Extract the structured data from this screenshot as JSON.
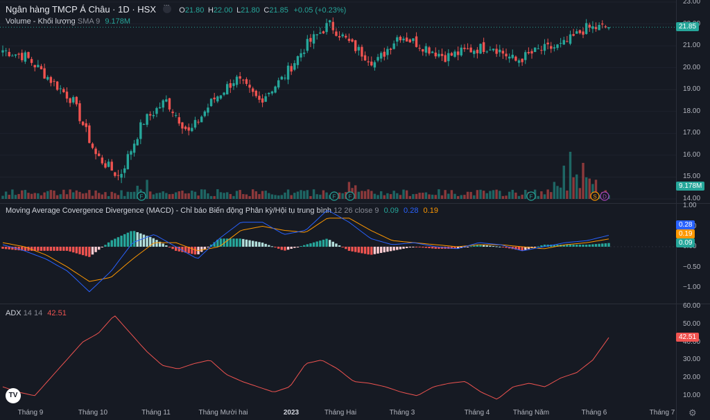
{
  "header": {
    "symbol": "Ngân hàng TMCP Á Châu · 1D · HSX",
    "open_label": "O",
    "open": "21.80",
    "high_label": "H",
    "high": "22.00",
    "low_label": "L",
    "low": "21.80",
    "close_label": "C",
    "close": "21.85",
    "change": "+0.05 (+0.23%)"
  },
  "volume_legend": {
    "name": "Volume - Khối lượng",
    "param": "SMA 9",
    "value": "9.178M"
  },
  "macd_legend": {
    "name": "Moving Average Covergence Divergence (MACD) - Chỉ báo Biến động Phân kỳ/Hội tụ trung bình",
    "param": "12 26 close 9",
    "hist": "0.09",
    "macd": "0.28",
    "signal": "0.19"
  },
  "adx_legend": {
    "name": "ADX",
    "param": "14 14",
    "value": "42.51"
  },
  "colors": {
    "up": "#26a69a",
    "down": "#ef5350",
    "macd": "#2962ff",
    "signal": "#ff9800",
    "adx": "#ef5350",
    "bg": "#161a23"
  },
  "price_axis": [
    "23.00",
    "22.00",
    "21.00",
    "20.00",
    "19.00",
    "18.00",
    "17.00",
    "16.00",
    "15.00",
    "14.00"
  ],
  "macd_axis": [
    "1.00",
    "0.50",
    "0.00",
    "−0.50",
    "−1.00"
  ],
  "adx_axis": [
    "60.00",
    "50.00",
    "40.00",
    "30.00",
    "20.00",
    "10.00"
  ],
  "tags": {
    "price": "21.85",
    "volume": "9.178M",
    "macd": "0.28",
    "signal": "0.19",
    "hist": "0.09",
    "adx": "42.51"
  },
  "x_labels": [
    "Tháng 9",
    "Tháng 10",
    "Tháng 11",
    "Tháng Mười hai",
    "2023",
    "Tháng Hai",
    "Tháng 3",
    "Tháng 4",
    "Tháng Năm",
    "Tháng 6",
    "Tháng 7"
  ],
  "event_markers": [
    "F",
    "F",
    "F",
    "F",
    "S",
    "D"
  ],
  "logo": "TV",
  "settings_icon": "gear-icon",
  "chart_data": [
    {
      "type": "candlestick",
      "title": "Ngân hàng TMCP Á Châu · 1D · HSX",
      "ylim": [
        14.0,
        23.0
      ],
      "close_key_points": [
        {
          "date": "Sep 2022",
          "close": 20.8
        },
        {
          "date": "mid Sep",
          "close": 20.5
        },
        {
          "date": "end Sep",
          "close": 19.5
        },
        {
          "date": "early Oct",
          "close": 18.5
        },
        {
          "date": "mid Oct",
          "close": 16.0
        },
        {
          "date": "late Oct",
          "close": 15.0
        },
        {
          "date": "early Nov",
          "close": 17.5
        },
        {
          "date": "mid Nov",
          "close": 18.5
        },
        {
          "date": "late Nov",
          "close": 17.0
        },
        {
          "date": "early Dec",
          "close": 18.5
        },
        {
          "date": "mid Dec",
          "close": 19.5
        },
        {
          "date": "end Dec",
          "close": 18.5
        },
        {
          "date": "early Jan 2023",
          "close": 19.5
        },
        {
          "date": "mid Jan",
          "close": 21.0
        },
        {
          "date": "late Jan",
          "close": 22.0
        },
        {
          "date": "early Feb",
          "close": 21.0
        },
        {
          "date": "mid Feb",
          "close": 20.2
        },
        {
          "date": "late Feb",
          "close": 21.5
        },
        {
          "date": "early Mar",
          "close": 21.0
        },
        {
          "date": "mid Mar",
          "close": 20.5
        },
        {
          "date": "early Apr",
          "close": 20.8
        },
        {
          "date": "mid Apr",
          "close": 21.0
        },
        {
          "date": "early May",
          "close": 20.3
        },
        {
          "date": "mid May",
          "close": 20.8
        },
        {
          "date": "late May",
          "close": 21.0
        },
        {
          "date": "early Jun",
          "close": 21.8
        },
        {
          "date": "Jun",
          "close": 21.85
        }
      ]
    },
    {
      "type": "bar",
      "name": "Volume",
      "note": "volume bars, peaks near mid-Oct, late Jan, late May/early Jun"
    },
    {
      "type": "line",
      "name": "MACD",
      "ylim": [
        -1.2,
        1.0
      ],
      "series": [
        {
          "name": "MACD",
          "values": [
            0.05,
            -0.1,
            -0.3,
            -0.6,
            -1.1,
            -0.6,
            0.1,
            0.3,
            0.0,
            -0.3,
            0.2,
            0.6,
            0.6,
            0.3,
            0.4,
            0.9,
            0.6,
            0.2,
            0.05,
            0.1,
            0.0,
            -0.05,
            0.1,
            0.05,
            -0.1,
            0.0,
            0.1,
            0.15,
            0.28
          ]
        },
        {
          "name": "Signal",
          "values": [
            0.1,
            0.0,
            -0.2,
            -0.5,
            -0.85,
            -0.75,
            -0.3,
            0.1,
            0.1,
            -0.1,
            0.0,
            0.4,
            0.5,
            0.4,
            0.35,
            0.7,
            0.7,
            0.4,
            0.15,
            0.1,
            0.05,
            0.0,
            0.05,
            0.05,
            0.0,
            -0.05,
            0.05,
            0.1,
            0.19
          ]
        },
        {
          "name": "Histogram",
          "values": [
            -0.05,
            -0.1,
            -0.1,
            -0.1,
            -0.25,
            0.15,
            0.4,
            0.2,
            -0.1,
            -0.2,
            0.2,
            0.2,
            0.1,
            -0.1,
            0.05,
            0.2,
            -0.1,
            -0.2,
            -0.1,
            0.0,
            -0.05,
            -0.05,
            0.05,
            0.0,
            -0.1,
            0.05,
            0.05,
            0.05,
            0.09
          ]
        }
      ]
    },
    {
      "type": "line",
      "name": "ADX",
      "ylim": [
        5,
        60
      ],
      "values": [
        15,
        12,
        10,
        20,
        30,
        40,
        45,
        55,
        45,
        35,
        27,
        25,
        28,
        30,
        22,
        18,
        15,
        12,
        15,
        28,
        30,
        25,
        18,
        17,
        15,
        12,
        10,
        15,
        17,
        18,
        12,
        8,
        15,
        17,
        15,
        20,
        23,
        30,
        42.51
      ]
    }
  ]
}
